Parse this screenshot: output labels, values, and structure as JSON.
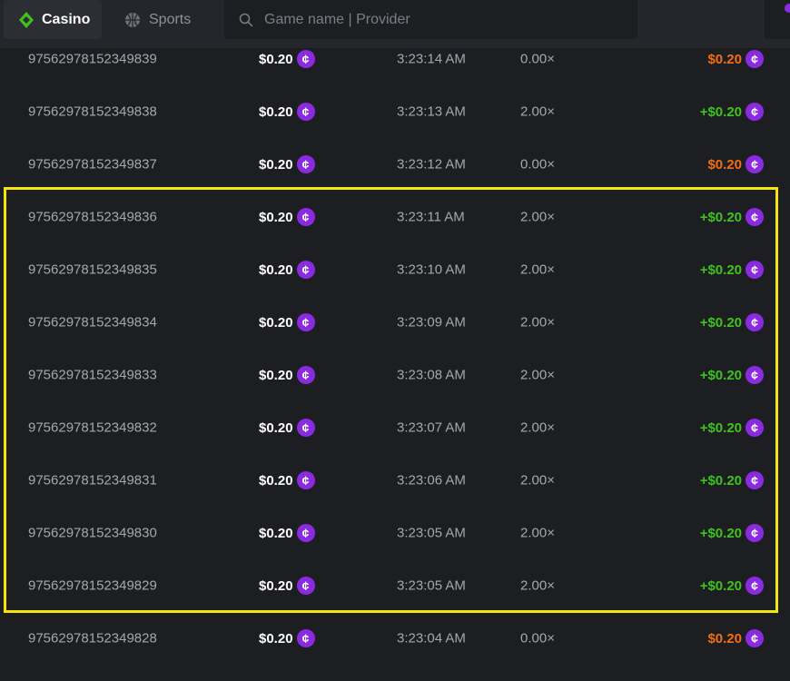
{
  "header": {
    "tabs": [
      {
        "label": "Casino",
        "icon": "casino-diamond-icon",
        "active": true
      },
      {
        "label": "Sports",
        "icon": "basketball-icon",
        "active": false
      }
    ],
    "search_placeholder": "Game name | Provider"
  },
  "colors": {
    "win": "#3ec21e",
    "loss": "#f36e10",
    "coin": "#8a2be2",
    "highlight": "#f5e50c"
  },
  "rows": [
    {
      "id": "97562978152349839",
      "bet": "$0.20",
      "time": "3:23:14 AM",
      "mult": "0.00×",
      "payout": "$0.20",
      "win": false
    },
    {
      "id": "97562978152349838",
      "bet": "$0.20",
      "time": "3:23:13 AM",
      "mult": "2.00×",
      "payout": "+$0.20",
      "win": true
    },
    {
      "id": "97562978152349837",
      "bet": "$0.20",
      "time": "3:23:12 AM",
      "mult": "0.00×",
      "payout": "$0.20",
      "win": false
    },
    {
      "id": "97562978152349836",
      "bet": "$0.20",
      "time": "3:23:11 AM",
      "mult": "2.00×",
      "payout": "+$0.20",
      "win": true
    },
    {
      "id": "97562978152349835",
      "bet": "$0.20",
      "time": "3:23:10 AM",
      "mult": "2.00×",
      "payout": "+$0.20",
      "win": true
    },
    {
      "id": "97562978152349834",
      "bet": "$0.20",
      "time": "3:23:09 AM",
      "mult": "2.00×",
      "payout": "+$0.20",
      "win": true
    },
    {
      "id": "97562978152349833",
      "bet": "$0.20",
      "time": "3:23:08 AM",
      "mult": "2.00×",
      "payout": "+$0.20",
      "win": true
    },
    {
      "id": "97562978152349832",
      "bet": "$0.20",
      "time": "3:23:07 AM",
      "mult": "2.00×",
      "payout": "+$0.20",
      "win": true
    },
    {
      "id": "97562978152349831",
      "bet": "$0.20",
      "time": "3:23:06 AM",
      "mult": "2.00×",
      "payout": "+$0.20",
      "win": true
    },
    {
      "id": "97562978152349830",
      "bet": "$0.20",
      "time": "3:23:05 AM",
      "mult": "2.00×",
      "payout": "+$0.20",
      "win": true
    },
    {
      "id": "97562978152349829",
      "bet": "$0.20",
      "time": "3:23:05 AM",
      "mult": "2.00×",
      "payout": "+$0.20",
      "win": true
    },
    {
      "id": "97562978152349828",
      "bet": "$0.20",
      "time": "3:23:04 AM",
      "mult": "0.00×",
      "payout": "$0.20",
      "win": false
    }
  ]
}
